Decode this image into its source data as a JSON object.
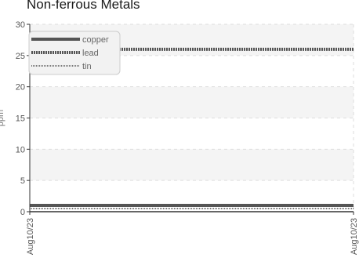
{
  "chart_data": {
    "type": "line",
    "title": "Non-ferrous Metals",
    "ylabel": "ppm",
    "xlabel": "",
    "x": [
      "Aug10/23",
      "Aug10/23"
    ],
    "xtick_labels": [
      "Aug10/23",
      "Aug10/23"
    ],
    "ylim": [
      0,
      30
    ],
    "yticks": [
      0,
      5,
      10,
      15,
      20,
      25,
      30
    ],
    "grid": true,
    "legend_position": "top-left",
    "series": [
      {
        "name": "copper",
        "values": [
          1,
          1
        ],
        "color": "#555555",
        "style": "solid"
      },
      {
        "name": "lead",
        "values": [
          26,
          26
        ],
        "color": "#555555",
        "style": "dense-dotted"
      },
      {
        "name": "tin",
        "values": [
          0.5,
          0.5
        ],
        "color": "#777777",
        "style": "fine-dotted"
      }
    ],
    "colors": {
      "band": "#f4f4f4",
      "grid": "#dddddd",
      "axis": "#333333"
    }
  }
}
